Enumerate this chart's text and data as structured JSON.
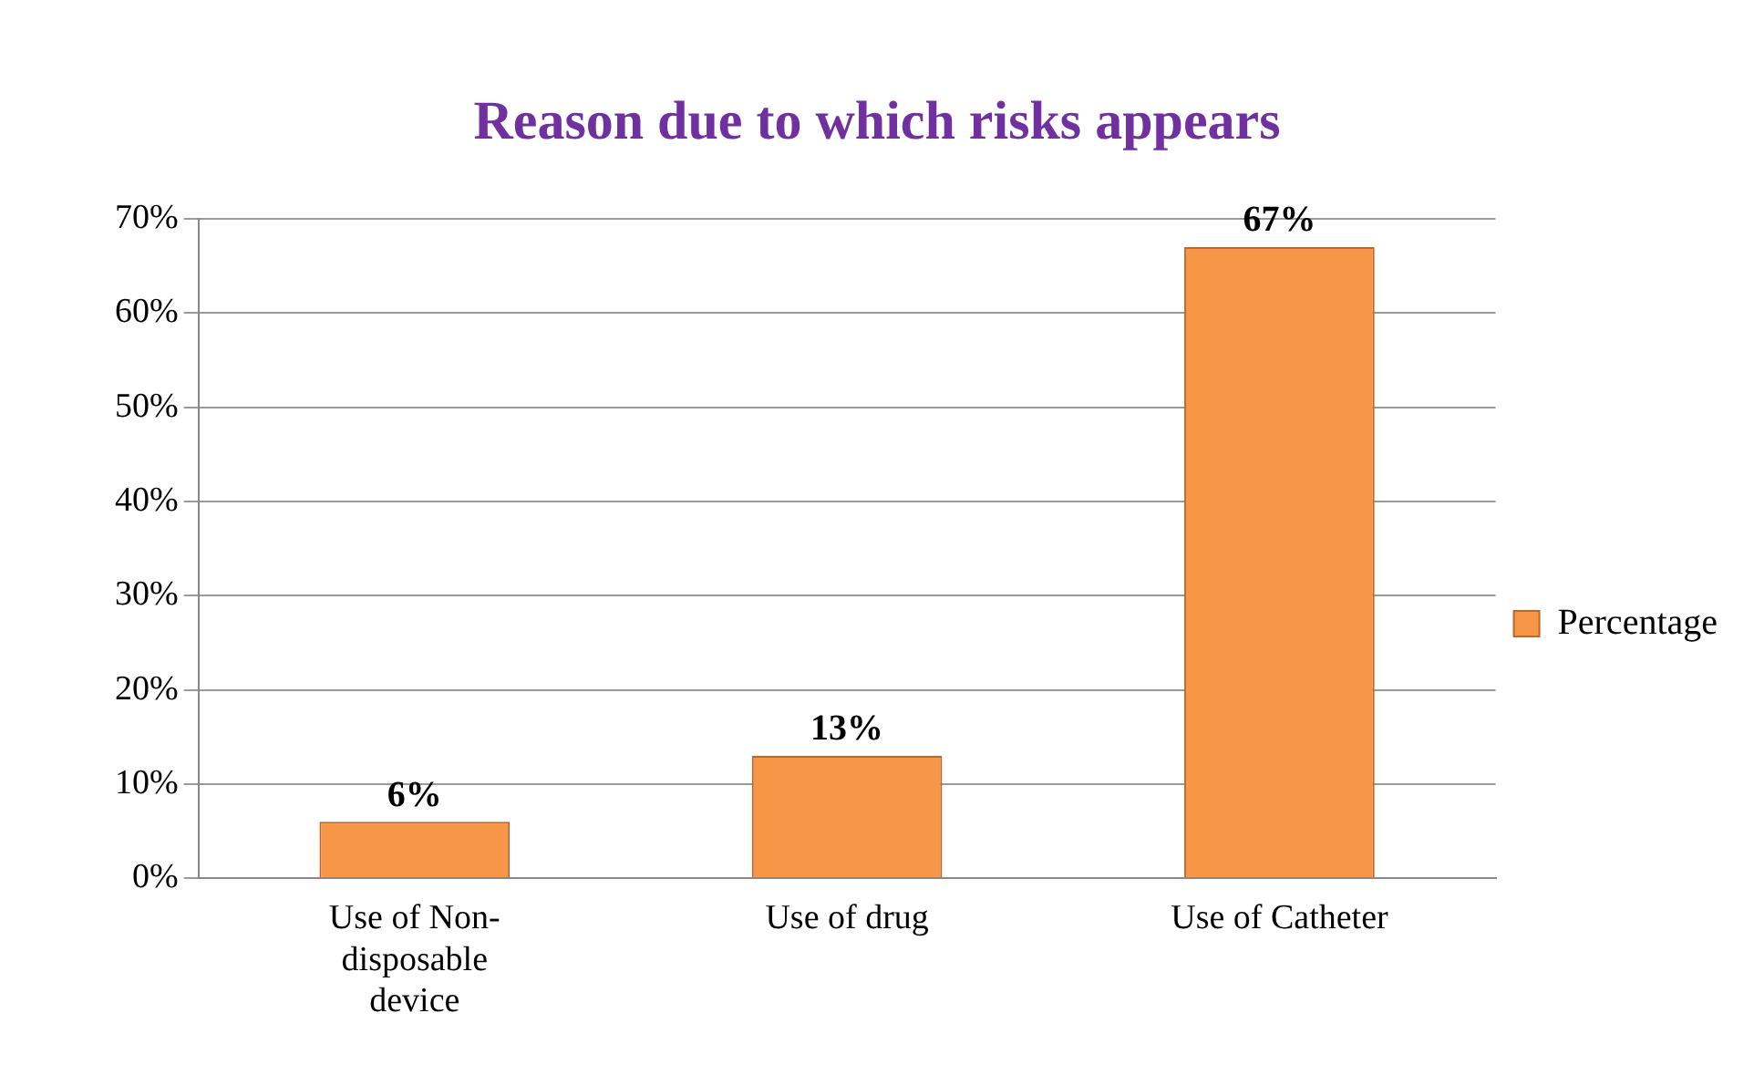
{
  "chart_data": {
    "type": "bar",
    "title": "Reason due to which risks appears",
    "categories": [
      [
        "Use of Non-",
        "disposable",
        "device"
      ],
      "Use of drug",
      "Use of Catheter"
    ],
    "series": [
      {
        "name": "Percentage",
        "color": "#f79646",
        "values": [
          6,
          13,
          67
        ],
        "value_labels": [
          "6%",
          "13%",
          "67%"
        ]
      }
    ],
    "ylim": [
      0,
      70
    ],
    "yticks": [
      {
        "value": 0,
        "label": "0%"
      },
      {
        "value": 10,
        "label": "10%"
      },
      {
        "value": 20,
        "label": "20%"
      },
      {
        "value": 30,
        "label": "30%"
      },
      {
        "value": 40,
        "label": "40%"
      },
      {
        "value": 50,
        "label": "50%"
      },
      {
        "value": 60,
        "label": "60%"
      },
      {
        "value": 70,
        "label": "70%"
      }
    ],
    "grid": "y",
    "legend": "right"
  }
}
